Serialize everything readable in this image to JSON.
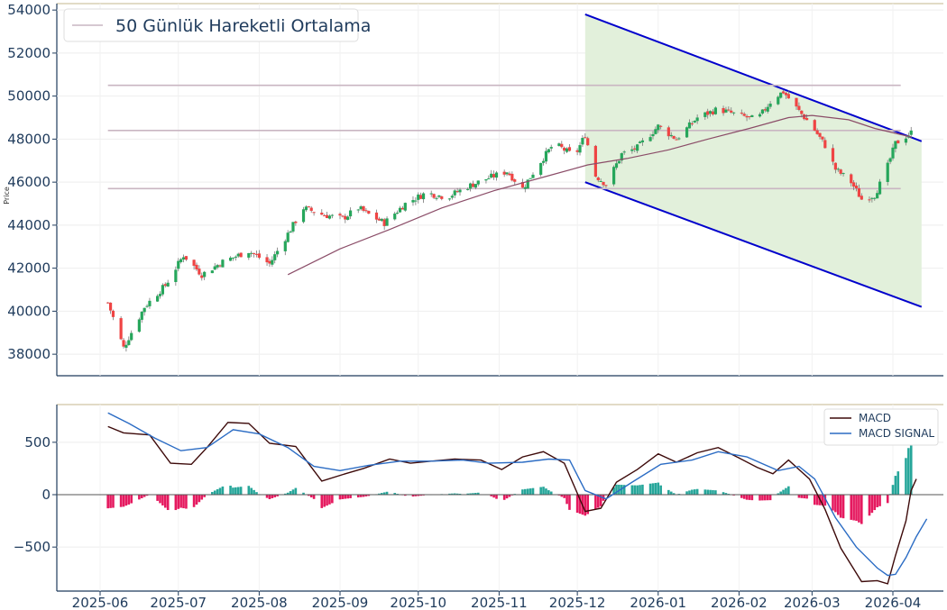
{
  "chart_data": [
    {
      "type": "candlestick",
      "ylabel": "Price",
      "ylim": [
        37000,
        54300
      ],
      "yticks": [
        38000,
        40000,
        42000,
        44000,
        46000,
        48000,
        50000,
        52000,
        54000
      ],
      "legend": {
        "label": "50 Günlük Hareketli Ortalama",
        "placement": "top-left"
      },
      "date_range": [
        "2025-06-04",
        "2026-04-08"
      ],
      "close_path": [
        [
          "2025-06-04",
          40400
        ],
        [
          "2025-06-10",
          38300
        ],
        [
          "2025-06-18",
          40200
        ],
        [
          "2025-06-26",
          41200
        ],
        [
          "2025-07-03",
          42600
        ],
        [
          "2025-07-10",
          41700
        ],
        [
          "2025-07-18",
          42300
        ],
        [
          "2025-07-28",
          42800
        ],
        [
          "2025-08-05",
          42200
        ],
        [
          "2025-08-12",
          43600
        ],
        [
          "2025-08-18",
          44800
        ],
        [
          "2025-08-25",
          44500
        ],
        [
          "2025-09-02",
          44300
        ],
        [
          "2025-09-08",
          44800
        ],
        [
          "2025-09-12",
          44500
        ],
        [
          "2025-09-18",
          44100
        ],
        [
          "2025-09-26",
          45000
        ],
        [
          "2025-10-04",
          45500
        ],
        [
          "2025-10-12",
          45300
        ],
        [
          "2025-10-20",
          45800
        ],
        [
          "2025-10-28",
          46200
        ],
        [
          "2025-11-04",
          46500
        ],
        [
          "2025-11-10",
          45700
        ],
        [
          "2025-11-16",
          46800
        ],
        [
          "2025-11-22",
          47800
        ],
        [
          "2025-11-30",
          47200
        ],
        [
          "2025-12-04",
          48200
        ],
        [
          "2025-12-08",
          46300
        ],
        [
          "2025-12-12",
          45900
        ],
        [
          "2025-12-18",
          47300
        ],
        [
          "2025-12-24",
          47600
        ],
        [
          "2026-01-01",
          48600
        ],
        [
          "2026-01-08",
          48000
        ],
        [
          "2026-01-16",
          49000
        ],
        [
          "2026-01-24",
          49400
        ],
        [
          "2026-02-01",
          49100
        ],
        [
          "2026-02-08",
          48900
        ],
        [
          "2026-02-14",
          49900
        ],
        [
          "2026-02-18",
          50200
        ],
        [
          "2026-02-24",
          49300
        ],
        [
          "2026-03-01",
          48600
        ],
        [
          "2026-03-06",
          47700
        ],
        [
          "2026-03-10",
          46600
        ],
        [
          "2026-03-16",
          46000
        ],
        [
          "2026-03-20",
          45200
        ],
        [
          "2026-03-25",
          45400
        ],
        [
          "2026-03-29",
          46400
        ],
        [
          "2026-04-02",
          47800
        ],
        [
          "2026-04-08",
          48300
        ]
      ],
      "moving_average_50": [
        [
          "2025-08-12",
          41700
        ],
        [
          "2025-09-01",
          42900
        ],
        [
          "2025-09-20",
          43800
        ],
        [
          "2025-10-10",
          44800
        ],
        [
          "2025-10-30",
          45600
        ],
        [
          "2025-11-20",
          46300
        ],
        [
          "2025-12-05",
          46800
        ],
        [
          "2025-12-20",
          47100
        ],
        [
          "2026-01-05",
          47500
        ],
        [
          "2026-01-20",
          48000
        ],
        [
          "2026-02-05",
          48500
        ],
        [
          "2026-02-20",
          49000
        ],
        [
          "2026-03-01",
          49100
        ],
        [
          "2026-03-15",
          48900
        ],
        [
          "2026-03-25",
          48500
        ],
        [
          "2026-04-08",
          48100
        ]
      ],
      "horizontal_levels": [
        50500,
        48400,
        45700
      ],
      "level_range": [
        "2025-06-04",
        "2026-04-04"
      ],
      "channel": {
        "upper": [
          [
            "2025-12-04",
            53800
          ],
          [
            "2026-04-12",
            47900
          ]
        ],
        "lower": [
          [
            "2025-12-04",
            46000
          ],
          [
            "2026-04-12",
            40200
          ]
        ],
        "fill_color": "#e2f0db",
        "line_color": "#0000cc"
      },
      "colors": {
        "up": "#26a65b",
        "down": "#ef4444",
        "ma": "#8b4d68",
        "level": "#c9b6c2"
      }
    },
    {
      "type": "line",
      "ylim": [
        -920,
        860
      ],
      "yticks": [
        -500,
        0,
        500
      ],
      "xticks": [
        "2025-06",
        "2025-07",
        "2025-08",
        "2025-09",
        "2025-10",
        "2025-11",
        "2025-12",
        "2026-01",
        "2026-02",
        "2026-03",
        "2026-04"
      ],
      "legend": {
        "placement": "top-right"
      },
      "series": [
        {
          "name": "MACD",
          "color": "#3d0a0a",
          "points": [
            [
              "2025-06-04",
              650
            ],
            [
              "2025-06-10",
              590
            ],
            [
              "2025-06-20",
              570
            ],
            [
              "2025-06-28",
              300
            ],
            [
              "2025-07-06",
              290
            ],
            [
              "2025-07-12",
              450
            ],
            [
              "2025-07-20",
              690
            ],
            [
              "2025-07-28",
              680
            ],
            [
              "2025-08-05",
              490
            ],
            [
              "2025-08-15",
              460
            ],
            [
              "2025-08-25",
              130
            ],
            [
              "2025-09-03",
              200
            ],
            [
              "2025-09-10",
              250
            ],
            [
              "2025-09-20",
              340
            ],
            [
              "2025-09-28",
              300
            ],
            [
              "2025-10-06",
              320
            ],
            [
              "2025-10-15",
              340
            ],
            [
              "2025-10-25",
              330
            ],
            [
              "2025-11-02",
              240
            ],
            [
              "2025-11-10",
              360
            ],
            [
              "2025-11-18",
              410
            ],
            [
              "2025-11-26",
              300
            ],
            [
              "2025-12-04",
              -160
            ],
            [
              "2025-12-10",
              -130
            ],
            [
              "2025-12-16",
              120
            ],
            [
              "2025-12-24",
              240
            ],
            [
              "2026-01-01",
              390
            ],
            [
              "2026-01-08",
              310
            ],
            [
              "2026-01-16",
              400
            ],
            [
              "2026-01-24",
              450
            ],
            [
              "2026-02-01",
              350
            ],
            [
              "2026-02-08",
              260
            ],
            [
              "2026-02-14",
              200
            ],
            [
              "2026-02-20",
              330
            ],
            [
              "2026-02-28",
              150
            ],
            [
              "2026-03-06",
              -140
            ],
            [
              "2026-03-12",
              -510
            ],
            [
              "2026-03-20",
              -830
            ],
            [
              "2026-03-26",
              -820
            ],
            [
              "2026-03-30",
              -850
            ],
            [
              "2026-04-02",
              -580
            ],
            [
              "2026-04-06",
              -250
            ],
            [
              "2026-04-08",
              40
            ],
            [
              "2026-04-10",
              150
            ]
          ]
        },
        {
          "name": "MACD SIGNAL",
          "color": "#2b6cc4",
          "points": [
            [
              "2025-06-04",
              780
            ],
            [
              "2025-06-12",
              680
            ],
            [
              "2025-06-22",
              540
            ],
            [
              "2025-07-02",
              420
            ],
            [
              "2025-07-12",
              450
            ],
            [
              "2025-07-22",
              620
            ],
            [
              "2025-08-01",
              580
            ],
            [
              "2025-08-12",
              450
            ],
            [
              "2025-08-22",
              270
            ],
            [
              "2025-09-01",
              230
            ],
            [
              "2025-09-12",
              280
            ],
            [
              "2025-09-24",
              320
            ],
            [
              "2025-10-06",
              320
            ],
            [
              "2025-10-18",
              330
            ],
            [
              "2025-10-28",
              300
            ],
            [
              "2025-11-10",
              310
            ],
            [
              "2025-11-20",
              340
            ],
            [
              "2025-11-28",
              330
            ],
            [
              "2025-12-04",
              40
            ],
            [
              "2025-12-12",
              -40
            ],
            [
              "2025-12-22",
              120
            ],
            [
              "2026-01-02",
              290
            ],
            [
              "2026-01-14",
              330
            ],
            [
              "2026-01-24",
              410
            ],
            [
              "2026-02-04",
              360
            ],
            [
              "2026-02-16",
              230
            ],
            [
              "2026-02-24",
              270
            ],
            [
              "2026-03-02",
              150
            ],
            [
              "2026-03-10",
              -220
            ],
            [
              "2026-03-18",
              -500
            ],
            [
              "2026-03-26",
              -700
            ],
            [
              "2026-03-30",
              -770
            ],
            [
              "2026-04-02",
              -760
            ],
            [
              "2026-04-06",
              -600
            ],
            [
              "2026-04-10",
              -400
            ],
            [
              "2026-04-14",
              -230
            ]
          ]
        }
      ],
      "histogram_colors": {
        "positive": "#26a69a",
        "negative": "#e5195f"
      }
    }
  ]
}
